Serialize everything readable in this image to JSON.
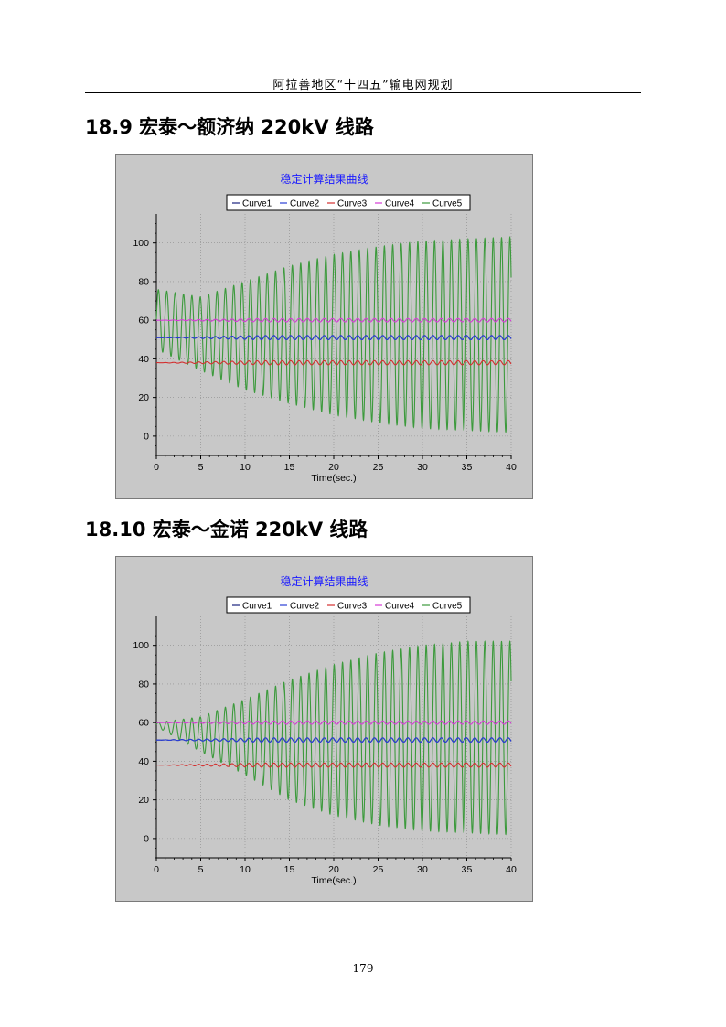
{
  "header": {
    "text": "阿拉善地区“十四五”输电网规划"
  },
  "sections": [
    {
      "heading": "18.9 宏泰～额济纳 220kV 线路"
    },
    {
      "heading": "18.10 宏泰～金诺 220kV 线路"
    }
  ],
  "page_number": "179",
  "colors": {
    "plot_bg": "#c8c8c8",
    "title": "#1a1aff",
    "curve1": "#1a237e",
    "curve2": "#2a3fd6",
    "curve3": "#d32f2f",
    "curve4": "#d63ad6",
    "curve5": "#3c9a3c"
  },
  "chart_data": [
    {
      "type": "line",
      "title": "稳定计算结果曲线",
      "xlabel": "Time(sec.)",
      "ylabel": "",
      "xlim": [
        0,
        40
      ],
      "ylim": [
        -10,
        115
      ],
      "x_ticks": [
        0,
        5,
        10,
        15,
        20,
        25,
        30,
        35,
        40
      ],
      "y_ticks": [
        0,
        20,
        40,
        60,
        80,
        100
      ],
      "grid": true,
      "legend_position": "top",
      "series": [
        {
          "name": "Curve1",
          "x": [
            0,
            40
          ],
          "values": [
            51,
            51
          ]
        },
        {
          "name": "Curve2",
          "x": [
            0,
            40
          ],
          "values": [
            51,
            51
          ]
        },
        {
          "name": "Curve3",
          "x": [
            0,
            40
          ],
          "values": [
            38,
            38
          ]
        },
        {
          "name": "Curve4",
          "x": [
            0,
            40
          ],
          "values": [
            60,
            60
          ]
        },
        {
          "name": "Curve5",
          "x": [
            0,
            5,
            10,
            15,
            20,
            25,
            30,
            35,
            40
          ],
          "upper_envelope": [
            76,
            72,
            80,
            88,
            94,
            98,
            101,
            102,
            103
          ],
          "lower_envelope": [
            45,
            34,
            24,
            17,
            11,
            7,
            4,
            3,
            2
          ]
        }
      ]
    },
    {
      "type": "line",
      "title": "稳定计算结果曲线",
      "xlabel": "Time(sec.)",
      "ylabel": "",
      "xlim": [
        0,
        40
      ],
      "ylim": [
        -10,
        115
      ],
      "x_ticks": [
        0,
        5,
        10,
        15,
        20,
        25,
        30,
        35,
        40
      ],
      "y_ticks": [
        0,
        20,
        40,
        60,
        80,
        100
      ],
      "grid": true,
      "legend_position": "top",
      "series": [
        {
          "name": "Curve1",
          "x": [
            0,
            40
          ],
          "values": [
            51,
            51
          ]
        },
        {
          "name": "Curve2",
          "x": [
            0,
            40
          ],
          "values": [
            51,
            51
          ]
        },
        {
          "name": "Curve3",
          "x": [
            0,
            40
          ],
          "values": [
            38,
            38
          ]
        },
        {
          "name": "Curve4",
          "x": [
            0,
            40
          ],
          "values": [
            60,
            60
          ]
        },
        {
          "name": "Curve5",
          "x": [
            0,
            5,
            10,
            15,
            20,
            25,
            30,
            35,
            40
          ],
          "upper_envelope": [
            60,
            63,
            72,
            82,
            90,
            96,
            100,
            102,
            102
          ],
          "lower_envelope": [
            58,
            45,
            33,
            20,
            12,
            7,
            4,
            3,
            2
          ]
        }
      ]
    }
  ]
}
